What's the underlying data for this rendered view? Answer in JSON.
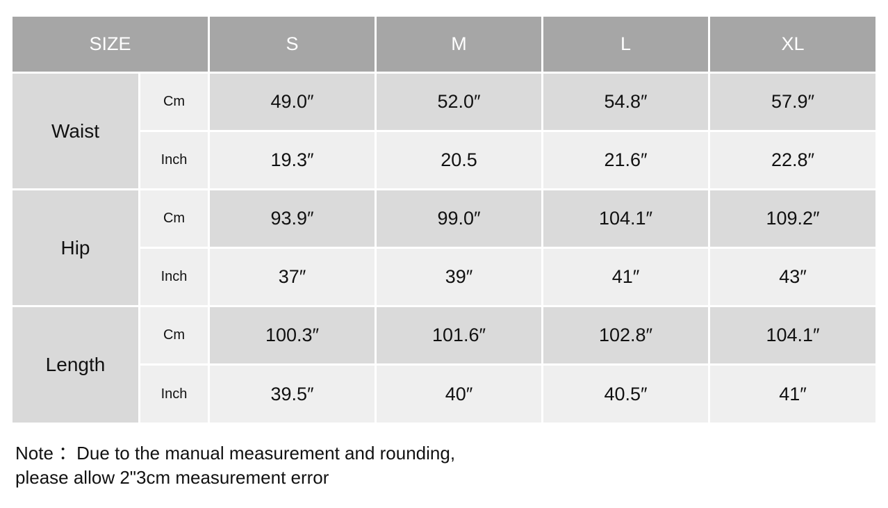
{
  "table": {
    "header": [
      "SIZE",
      "S",
      "M",
      "L",
      "XL"
    ],
    "groups": [
      {
        "label": "Waist",
        "rows": [
          {
            "unit": "Cm",
            "values": [
              "49.0″",
              "52.0″",
              "54.8″",
              "57.9″"
            ]
          },
          {
            "unit": "Inch",
            "values": [
              "19.3″",
              "20.5",
              "21.6″",
              "22.8″"
            ]
          }
        ]
      },
      {
        "label": "Hip",
        "rows": [
          {
            "unit": "Cm",
            "values": [
              "93.9″",
              "99.0″",
              "104.1″",
              "109.2″"
            ]
          },
          {
            "unit": "Inch",
            "values": [
              "37″",
              "39″",
              "41″",
              "43″"
            ]
          }
        ]
      },
      {
        "label": "Length",
        "rows": [
          {
            "unit": "Cm",
            "values": [
              "100.3″",
              "101.6″",
              "102.8″",
              "104.1″"
            ]
          },
          {
            "unit": "Inch",
            "values": [
              "39.5″",
              "40″",
              "40.5″",
              "41″"
            ]
          }
        ]
      }
    ]
  },
  "note": [
    "Note ：Due to the manual measurement and rounding,",
    "please allow 2\"3cm measurement error"
  ]
}
